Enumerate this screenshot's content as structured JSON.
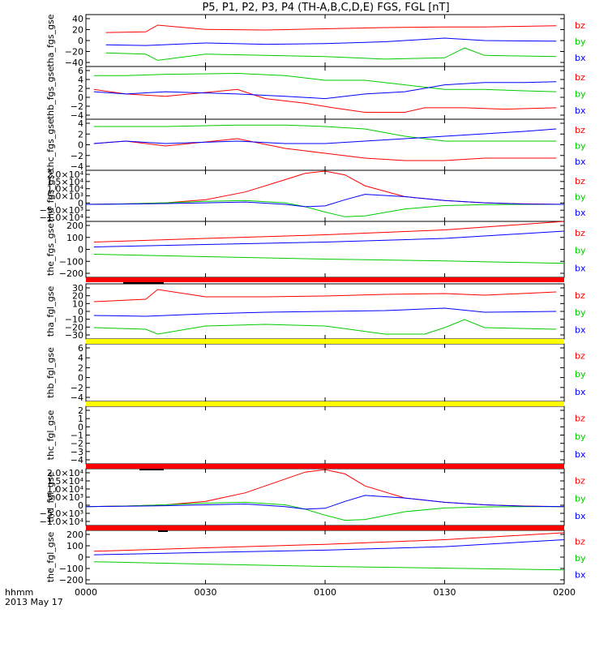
{
  "title": "P5, P1, P2, P3, P4 (TH-A,B,C,D,E) FGS, FGL [nT]",
  "colors": {
    "bz": "#ff0000",
    "by": "#00cc00",
    "bx": "#0000ff",
    "flag_red": "#ff0000",
    "flag_yellow": "#ffff00"
  },
  "legend": [
    "bz",
    "by",
    "bx"
  ],
  "xaxis": {
    "ticks": [
      "0000",
      "0030",
      "0100",
      "0130",
      "0200"
    ],
    "label_line1": "hhmm",
    "label_line2": "2013 May 17"
  },
  "chart_data": [
    {
      "type": "line",
      "ylabel": "tha_fgs_gse",
      "yticks": [
        "40",
        "20",
        "0",
        "−20",
        "−40"
      ],
      "ylim": [
        -42,
        42
      ],
      "xlim": [
        0,
        120
      ],
      "series": [
        {
          "name": "bz",
          "x": [
            5,
            15,
            18,
            30,
            45,
            60,
            75,
            90,
            100,
            118
          ],
          "y": [
            13,
            14,
            25,
            18,
            17,
            19,
            21,
            22,
            22,
            24
          ]
        },
        {
          "name": "by",
          "x": [
            5,
            15,
            18,
            30,
            45,
            60,
            75,
            90,
            95,
            100,
            118
          ],
          "y": [
            -20,
            -22,
            -32,
            -22,
            -24,
            -26,
            -30,
            -28,
            -12,
            -24,
            -26
          ]
        },
        {
          "name": "bx",
          "x": [
            5,
            15,
            30,
            45,
            60,
            75,
            90,
            100,
            118
          ],
          "y": [
            -7,
            -8,
            -4,
            -6,
            -5,
            -2,
            4,
            0,
            -1
          ]
        }
      ]
    },
    {
      "type": "line",
      "ylabel": "thb_fgs_gse",
      "yticks": [
        "6",
        "4",
        "2",
        "0",
        "−2",
        "−4"
      ],
      "ylim": [
        -5,
        6.5
      ],
      "xlim": [
        0,
        120
      ],
      "series": [
        {
          "name": "bz",
          "x": [
            2,
            10,
            20,
            38,
            45,
            55,
            62,
            70,
            80,
            85,
            95,
            105,
            118
          ],
          "y": [
            1.5,
            0.5,
            0,
            1.5,
            -0.5,
            -1.5,
            -2.5,
            -3.5,
            -3.5,
            -2.5,
            -2.5,
            -2.8,
            -2.5
          ]
        },
        {
          "name": "by",
          "x": [
            2,
            10,
            20,
            38,
            50,
            60,
            70,
            80,
            90,
            100,
            110,
            118
          ],
          "y": [
            4.5,
            4.5,
            4.8,
            5,
            4.5,
            3.5,
            3.5,
            2.5,
            1.5,
            1.5,
            1.2,
            1
          ]
        },
        {
          "name": "bx",
          "x": [
            2,
            10,
            20,
            38,
            50,
            60,
            70,
            80,
            90,
            100,
            110,
            118
          ],
          "y": [
            1,
            0.5,
            1,
            0.5,
            0,
            -0.5,
            0.5,
            1,
            2.5,
            3,
            3,
            3.2
          ]
        }
      ]
    },
    {
      "type": "line",
      "ylabel": "thc_fgs_gse",
      "yticks": [
        "4",
        "2",
        "0",
        "−2",
        "−4"
      ],
      "ylim": [
        -5.5,
        5
      ],
      "xlim": [
        0,
        120
      ],
      "series": [
        {
          "name": "bz",
          "x": [
            2,
            10,
            20,
            38,
            50,
            60,
            70,
            80,
            90,
            100,
            110,
            118
          ],
          "y": [
            0,
            0.5,
            -0.5,
            1,
            -1,
            -2,
            -3,
            -3.5,
            -3.5,
            -3,
            -3,
            -3
          ]
        },
        {
          "name": "by",
          "x": [
            2,
            10,
            20,
            38,
            50,
            60,
            70,
            80,
            90,
            100,
            110,
            118
          ],
          "y": [
            3.5,
            3.5,
            3.5,
            3.8,
            3.8,
            3.5,
            3,
            1.5,
            0.5,
            0.5,
            0.5,
            0.5
          ]
        },
        {
          "name": "bx",
          "x": [
            2,
            10,
            20,
            38,
            50,
            60,
            70,
            80,
            90,
            100,
            110,
            118
          ],
          "y": [
            0,
            0.5,
            0,
            0.5,
            0,
            0,
            0.5,
            1,
            1.5,
            2,
            2.5,
            3
          ]
        }
      ]
    },
    {
      "type": "line",
      "ylabel": "thd_fgs_gse",
      "yticks": [
        "2.0×10⁴",
        "1.5×10⁴",
        "1.0×10⁴",
        "5.0×10³",
        "0",
        "−5.0×10³",
        "−1.0×10⁴"
      ],
      "ylim": [
        -11000,
        22000
      ],
      "xlim": [
        0,
        120
      ],
      "series": [
        {
          "name": "bz",
          "x": [
            0,
            10,
            20,
            30,
            40,
            50,
            55,
            60,
            65,
            70,
            80,
            90,
            100,
            110,
            120
          ],
          "y": [
            0,
            300,
            1000,
            3000,
            8000,
            16000,
            20000,
            21500,
            19000,
            12000,
            5000,
            2500,
            1000,
            300,
            0
          ]
        },
        {
          "name": "by",
          "x": [
            0,
            10,
            20,
            30,
            40,
            50,
            55,
            60,
            65,
            70,
            80,
            90,
            100,
            110,
            120
          ],
          "y": [
            0,
            300,
            1000,
            2000,
            2500,
            1000,
            -1500,
            -5000,
            -8000,
            -7500,
            -3000,
            -800,
            -200,
            0,
            0
          ]
        },
        {
          "name": "bx",
          "x": [
            0,
            10,
            20,
            30,
            40,
            50,
            55,
            60,
            65,
            70,
            80,
            90,
            100,
            110,
            120
          ],
          "y": [
            0,
            200,
            500,
            1000,
            1500,
            0,
            -1500,
            -1000,
            3000,
            6500,
            5000,
            2500,
            1000,
            200,
            0
          ]
        }
      ]
    },
    {
      "type": "line",
      "ylabel": "the_fgs_gse",
      "yticks": [
        "200",
        "100",
        "0",
        "−100",
        "−200"
      ],
      "ylim": [
        -230,
        230
      ],
      "xlim": [
        0,
        120
      ],
      "series": [
        {
          "name": "bz",
          "x": [
            2,
            30,
            60,
            90,
            120
          ],
          "y": [
            60,
            90,
            120,
            160,
            230
          ]
        },
        {
          "name": "by",
          "x": [
            2,
            30,
            60,
            90,
            120
          ],
          "y": [
            -40,
            -60,
            -80,
            -95,
            -115
          ]
        },
        {
          "name": "bx",
          "x": [
            2,
            30,
            60,
            90,
            120
          ],
          "y": [
            20,
            40,
            60,
            90,
            150
          ]
        }
      ]
    },
    {
      "type": "line",
      "ylabel": "tha_fgl_gse",
      "yticks": [
        "30",
        "20",
        "10",
        "0",
        "−10",
        "−20",
        "−30"
      ],
      "ylim": [
        -34,
        34
      ],
      "xlim": [
        0,
        120
      ],
      "series": [
        {
          "name": "bz",
          "x": [
            2,
            15,
            18,
            30,
            45,
            60,
            75,
            90,
            100,
            118
          ],
          "y": [
            12,
            15,
            27,
            18,
            18,
            19,
            21,
            22,
            20,
            24
          ]
        },
        {
          "name": "by",
          "x": [
            2,
            15,
            18,
            30,
            45,
            60,
            75,
            85,
            90,
            95,
            100,
            118
          ],
          "y": [
            -20,
            -22,
            -28,
            -18,
            -16,
            -18,
            -28,
            -28,
            -20,
            -10,
            -20,
            -22
          ]
        },
        {
          "name": "bx",
          "x": [
            2,
            15,
            30,
            45,
            60,
            75,
            90,
            100,
            118
          ],
          "y": [
            -5,
            -6,
            -3,
            -1,
            0,
            1,
            4,
            -1,
            0
          ]
        }
      ]
    },
    {
      "type": "line",
      "ylabel": "thb_fgl_gse",
      "yticks": [
        "6",
        "4",
        "2",
        "0",
        "−2",
        "−4"
      ],
      "ylim": [
        -5,
        7
      ],
      "xlim": [
        0,
        120
      ],
      "series": []
    },
    {
      "type": "line",
      "ylabel": "thc_fgl_gse",
      "yticks": [
        "2",
        "1",
        "0",
        "−1",
        "−2",
        "−3",
        "−4"
      ],
      "ylim": [
        -4.5,
        2.2
      ],
      "xlim": [
        0,
        120
      ],
      "series": []
    },
    {
      "type": "line",
      "ylabel": "thd_fgl_gse",
      "yticks": [
        "2.0×10⁴",
        "1.5×10⁴",
        "1.0×10⁴",
        "5.0×10³",
        "0",
        "−5.0×10³",
        "−1.0×10⁴"
      ],
      "ylim": [
        -11000,
        22000
      ],
      "xlim": [
        0,
        120
      ],
      "series": [
        {
          "name": "bz",
          "x": [
            0,
            10,
            20,
            30,
            40,
            50,
            55,
            60,
            65,
            70,
            80,
            90,
            100,
            110,
            120
          ],
          "y": [
            0,
            300,
            1000,
            3000,
            8000,
            16000,
            20000,
            21500,
            19000,
            12000,
            5000,
            2500,
            1000,
            300,
            0
          ]
        },
        {
          "name": "by",
          "x": [
            0,
            10,
            20,
            30,
            40,
            50,
            55,
            60,
            65,
            70,
            80,
            90,
            100,
            110,
            120
          ],
          "y": [
            0,
            300,
            1000,
            2000,
            2500,
            1000,
            -1500,
            -5000,
            -8000,
            -7500,
            -3000,
            -800,
            -200,
            0,
            0
          ]
        },
        {
          "name": "bx",
          "x": [
            0,
            10,
            20,
            30,
            40,
            50,
            55,
            60,
            65,
            70,
            80,
            90,
            100,
            110,
            120
          ],
          "y": [
            0,
            200,
            500,
            1000,
            1500,
            0,
            -1500,
            -1000,
            3000,
            6500,
            5000,
            2500,
            1000,
            200,
            0
          ]
        }
      ]
    },
    {
      "type": "line",
      "ylabel": "the_fgl_gse",
      "yticks": [
        "200",
        "100",
        "0",
        "−100",
        "−200"
      ],
      "ylim": [
        -230,
        230
      ],
      "xlim": [
        0,
        120
      ],
      "series": [
        {
          "name": "bz",
          "x": [
            2,
            30,
            60,
            90,
            120
          ],
          "y": [
            50,
            80,
            110,
            150,
            210
          ]
        },
        {
          "name": "by",
          "x": [
            2,
            30,
            60,
            90,
            120
          ],
          "y": [
            -40,
            -60,
            -80,
            -95,
            -110
          ]
        },
        {
          "name": "bx",
          "x": [
            2,
            30,
            60,
            90,
            120
          ],
          "y": [
            20,
            40,
            60,
            90,
            150
          ]
        }
      ]
    }
  ]
}
